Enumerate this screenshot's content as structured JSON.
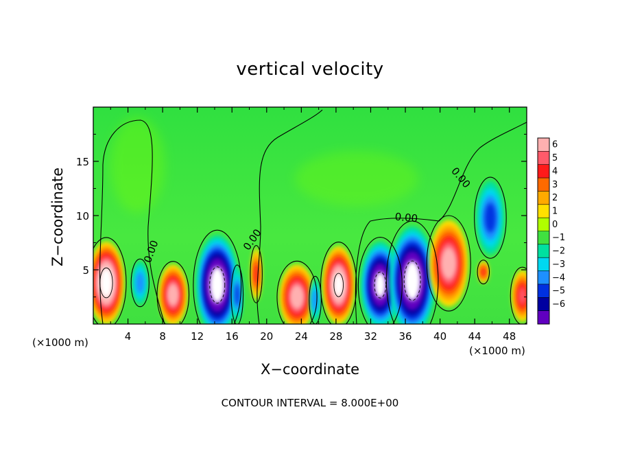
{
  "chart_data": {
    "type": "heatmap",
    "title": "vertical velocity",
    "xlabel": "X−coordinate",
    "ylabel": "Z−coordinate",
    "x_unit": "(×1000 m)",
    "z_unit": "(×1000 m)",
    "xlim": [
      0,
      50
    ],
    "zlim": [
      0,
      20
    ],
    "x_ticks": [
      4,
      8,
      12,
      16,
      20,
      24,
      28,
      32,
      36,
      40,
      44,
      48
    ],
    "z_ticks": [
      5,
      10,
      15
    ],
    "contour_labels": [
      "0.00",
      "0.00",
      "0.00",
      "0.00"
    ],
    "footnote": "CONTOUR INTERVAL = 8.000E+00",
    "colorbar": {
      "levels": [
        6,
        5,
        4,
        3,
        2,
        1,
        0,
        -1,
        -2,
        -3,
        -4,
        -5,
        -6
      ],
      "level_labels": [
        "6",
        "5",
        "4",
        "3",
        "2",
        "1",
        "0",
        "−1",
        "−2",
        "−3",
        "−4",
        "−5",
        "−6"
      ],
      "colors": [
        "#ffb0b0",
        "#ff5a6a",
        "#ff1a1a",
        "#ff6a00",
        "#ffaa00",
        "#ffe000",
        "#b0ff00",
        "#40e040",
        "#00e0a0",
        "#00d8f0",
        "#1e90ff",
        "#0030e0",
        "#0000a0",
        "#6000c0"
      ]
    },
    "cells": [
      {
        "x": 1.5,
        "z": 3.8,
        "w": 2.6,
        "rx": 2.0,
        "rz": 3.8,
        "max": 10
      },
      {
        "x": 5.4,
        "z": 3.8,
        "w": -2.5,
        "rx": 0.9,
        "rz": 2.0,
        "max": -3
      },
      {
        "x": 9.2,
        "z": 2.7,
        "w": 2.5,
        "rx": 1.6,
        "rz": 2.8,
        "max": 7
      },
      {
        "x": 14.3,
        "z": 3.6,
        "w": -3.4,
        "rx": 2.4,
        "rz": 4.6,
        "max": -10
      },
      {
        "x": 16.6,
        "z": 2.7,
        "w": -2,
        "rx": 0.6,
        "rz": 2.5,
        "max": -4
      },
      {
        "x": 18.8,
        "z": 4.6,
        "w": 2,
        "rx": 0.6,
        "rz": 2.4,
        "max": 4
      },
      {
        "x": 23.5,
        "z": 2.5,
        "w": 2.5,
        "rx": 2.0,
        "rz": 3.0,
        "max": 7
      },
      {
        "x": 25.6,
        "z": 2.2,
        "w": -2,
        "rx": 0.6,
        "rz": 2.0,
        "max": -3
      },
      {
        "x": 28.3,
        "z": 3.6,
        "w": 2.5,
        "rx": 1.8,
        "rz": 3.6,
        "max": 9
      },
      {
        "x": 33.1,
        "z": 3.6,
        "w": -3.3,
        "rx": 2.2,
        "rz": 4.0,
        "max": -9
      },
      {
        "x": 36.8,
        "z": 4.0,
        "w": -3.5,
        "rx": 2.6,
        "rz": 5.0,
        "max": -10
      },
      {
        "x": 41.0,
        "z": 5.6,
        "w": 2.2,
        "rx": 2.2,
        "rz": 4.0,
        "max": 7
      },
      {
        "x": 45.8,
        "z": 9.8,
        "w": -2,
        "rx": 1.6,
        "rz": 3.4,
        "max": -4
      },
      {
        "x": 45.0,
        "z": 4.8,
        "w": 2,
        "rx": 0.6,
        "rz": 1.0,
        "max": 4
      },
      {
        "x": 49.5,
        "z": 2.6,
        "w": 2,
        "rx": 1.2,
        "rz": 2.4,
        "max": 5
      }
    ]
  }
}
